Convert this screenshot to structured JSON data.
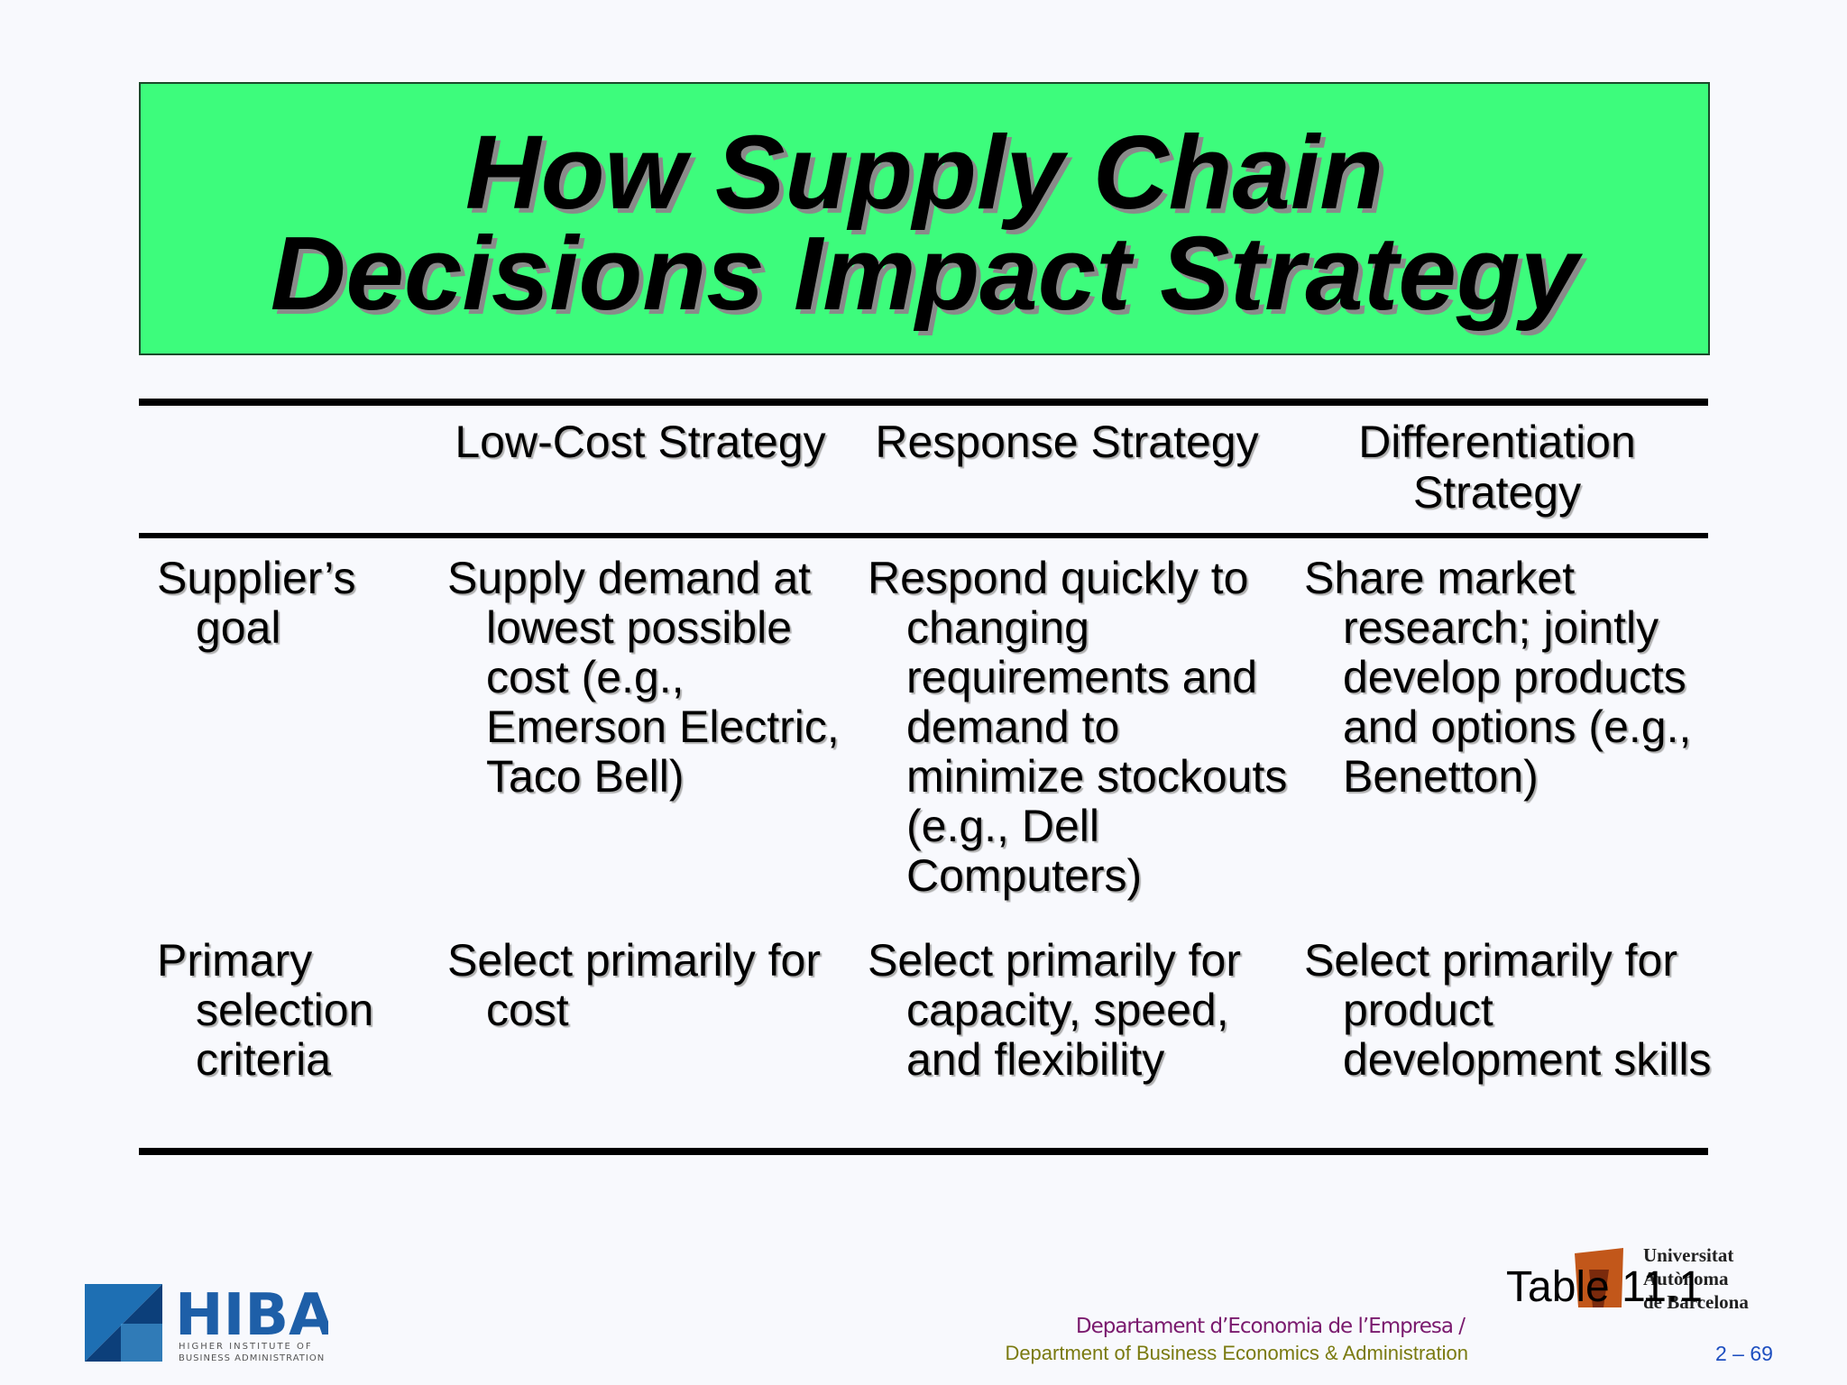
{
  "header": {
    "title_lines": [
      "How Supply Chain",
      "Decisions Impact Strategy"
    ]
  },
  "table": {
    "headers": [
      "Low-Cost Strategy",
      "Response Strategy",
      "Differentiation Strategy"
    ],
    "rows": [
      [
        "Supplier’s goal",
        "Supply demand at lowest possible cost (e.g., Emerson Electric, Taco Bell)",
        "Respond quickly to changing requirements and demand to minimize stockouts (e.g., Dell Computers)",
        "Share market research; jointly develop products and options (e.g., Benetton)"
      ],
      [
        "Primary selection criteria",
        "Select primarily for cost",
        "Select primarily for capacity, speed, and flexibility",
        "Select primarily for product development skills"
      ]
    ]
  },
  "footer": {
    "table_ref": "Table 11.1",
    "dept_ca": "Departament d’Economia de l’Empresa /",
    "dept_en": "Department of Business Economics & Administration",
    "page": "2 – 69",
    "logo_left": {
      "name": "HIBA",
      "line1": "HIGHER INSTITUTE OF",
      "line2": "BUSINESS ADMINISTRATION"
    },
    "logo_right": {
      "line1": "Universitat",
      "line2": "Autònoma",
      "line3": "de Barcelona"
    }
  }
}
